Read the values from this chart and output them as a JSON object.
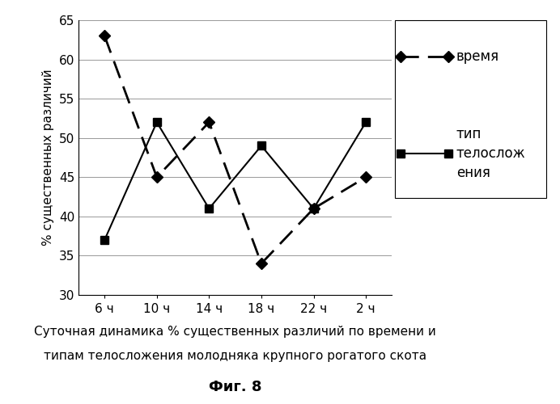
{
  "x_labels": [
    "6 ч",
    "10 ч",
    "14 ч",
    "18 ч",
    "22 ч",
    "2 ч"
  ],
  "x_positions": [
    0,
    1,
    2,
    3,
    4,
    5
  ],
  "vremya_values": [
    63,
    45,
    52,
    34,
    41,
    45
  ],
  "tip_values": [
    37,
    52,
    41,
    49,
    41,
    52
  ],
  "ylim": [
    30,
    65
  ],
  "yticks": [
    30,
    35,
    40,
    45,
    50,
    55,
    60,
    65
  ],
  "ylabel": "% существенных различий",
  "legend_vremya": "время",
  "legend_tip": "тип\nтелослож\nения",
  "caption_line1": "Суточная динамика % существенных различий по времени и",
  "caption_line2": "типам телосложения молодняка крупного рогатого скота",
  "caption_fig": "Фиг. 8",
  "line_color": "#000000",
  "bg_color": "#ffffff"
}
